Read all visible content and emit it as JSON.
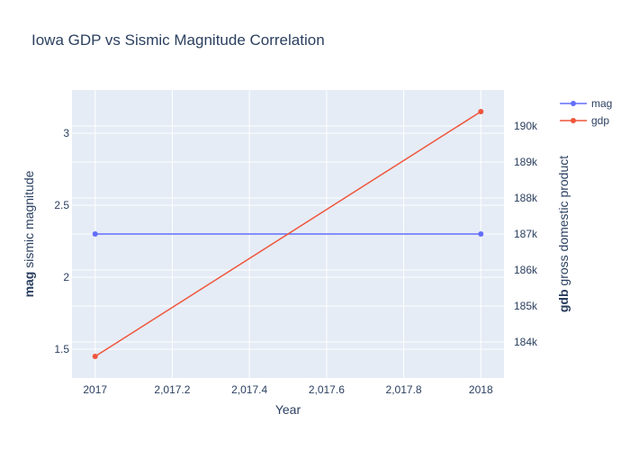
{
  "chart_data": {
    "type": "line",
    "title": "Iowa GDP vs Sismic Magnitude Correlation",
    "xlabel": "Year",
    "x": [
      2017,
      2018
    ],
    "xlim": [
      2016.94,
      2018.06
    ],
    "x_ticks": [
      2017,
      2017.2,
      2017.4,
      2017.6,
      2017.8,
      2018
    ],
    "x_tick_labels": [
      "2017",
      "2,017.2",
      "2,017.4",
      "2,017.6",
      "2,017.8",
      "2018"
    ],
    "y_left": {
      "label_bold": "mag",
      "label_rest": " sismic magnitude",
      "ylim": [
        1.3,
        3.3
      ],
      "ticks": [
        1.5,
        2,
        2.5,
        3
      ],
      "tick_labels": [
        "1.5",
        "2",
        "2.5",
        "3"
      ]
    },
    "y_right": {
      "label_bold": "gdb",
      "label_rest": " gross domestic product",
      "ylim": [
        183000,
        191000
      ],
      "ticks": [
        184000,
        185000,
        186000,
        187000,
        188000,
        189000,
        190000
      ],
      "tick_labels": [
        "184k",
        "185k",
        "186k",
        "187k",
        "188k",
        "189k",
        "190k"
      ]
    },
    "series": [
      {
        "name": "mag",
        "axis": "left",
        "color": "#636efa",
        "values": [
          2.3,
          2.3
        ]
      },
      {
        "name": "gdp",
        "axis": "right",
        "color": "#ef553b",
        "values": [
          183600,
          190400
        ]
      }
    ],
    "grid": true,
    "legend": "top-right",
    "plot_background": "#e5ecf6",
    "gridline_color": "#ffffff",
    "text_color": "#2a3f5f"
  }
}
